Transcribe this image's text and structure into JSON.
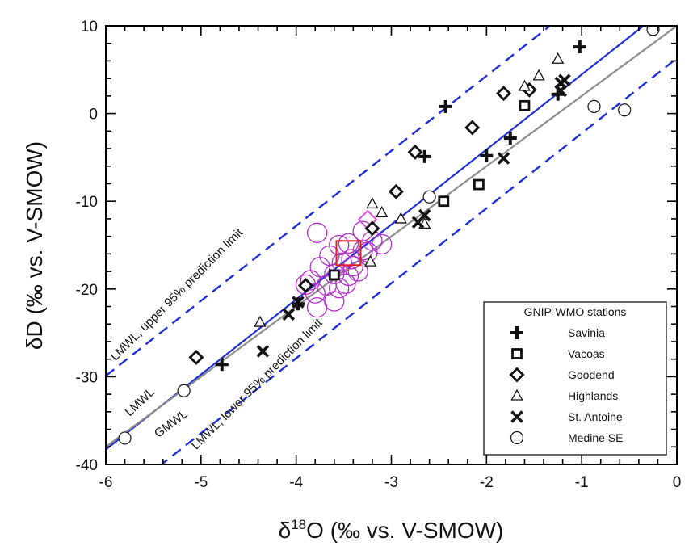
{
  "chart_data": {
    "type": "scatter",
    "xlabel_prefix": "δ",
    "xlabel_sup": "18",
    "xlabel_rest": "O (‰ vs. V-SMOW)",
    "ylabel": "δD (‰ vs. V-SMOW)",
    "xlim": [
      -6,
      0
    ],
    "ylim": [
      -40,
      10
    ],
    "xticks": [
      -6,
      -5,
      -4,
      -3,
      -2,
      -1,
      0
    ],
    "yticks": [
      -40,
      -30,
      -20,
      -10,
      0,
      10
    ],
    "legend": {
      "title": "GNIP-WMO stations",
      "placement": "bottom-right"
    },
    "lines": [
      {
        "name": "LMWL",
        "color": "#1f2fd6",
        "style": "solid",
        "slope": 8.55,
        "intercept": 13.0
      },
      {
        "name": "LMWL, upper 95% prediction limit",
        "color": "#1f2fd6",
        "style": "dashed",
        "slope": 8.55,
        "intercept": 21.4
      },
      {
        "name": "LMWL, lower 95% prediction limit",
        "color": "#1f2fd6",
        "style": "dashed",
        "slope": 8.55,
        "intercept": 6.3
      },
      {
        "name": "GMWL",
        "color": "#8c8c8c",
        "style": "solid",
        "slope": 8,
        "intercept": 10
      }
    ],
    "line_labels": [
      {
        "text": "LMWL, upper 95% prediction limit"
      },
      {
        "text": "LMWL"
      },
      {
        "text": "GMWL"
      },
      {
        "text": "LMWL, lower 95% prediction limit"
      }
    ],
    "series": [
      {
        "name": "Savinia",
        "marker": "plus",
        "points": [
          [
            -1.02,
            7.6
          ],
          [
            -2.43,
            0.8
          ],
          [
            -1.25,
            2.2
          ],
          [
            -1.75,
            -2.8
          ],
          [
            -2.65,
            -4.9
          ],
          [
            -2.0,
            -4.8
          ],
          [
            -4.78,
            -28.6
          ],
          [
            -3.98,
            -21.7
          ]
        ]
      },
      {
        "name": "Vacoas",
        "marker": "square",
        "points": [
          [
            -1.6,
            0.9
          ],
          [
            -2.08,
            -8.1
          ],
          [
            -2.45,
            -10.0
          ],
          [
            -3.6,
            -18.4
          ]
        ]
      },
      {
        "name": "Goodend",
        "marker": "diamond",
        "points": [
          [
            -1.82,
            2.3
          ],
          [
            -1.55,
            2.7
          ],
          [
            -2.15,
            -1.6
          ],
          [
            -2.75,
            -4.4
          ],
          [
            -2.95,
            -8.9
          ],
          [
            -3.2,
            -13.1
          ],
          [
            -3.9,
            -19.6
          ],
          [
            -5.05,
            -27.8
          ]
        ]
      },
      {
        "name": "Highlands",
        "marker": "triangle",
        "points": [
          [
            -1.25,
            6.2
          ],
          [
            -1.45,
            4.3
          ],
          [
            -1.6,
            3.1
          ],
          [
            -3.2,
            -10.3
          ],
          [
            -3.1,
            -11.3
          ],
          [
            -2.9,
            -12.0
          ],
          [
            -2.65,
            -12.6
          ],
          [
            -3.22,
            -16.9
          ],
          [
            -4.38,
            -23.8
          ]
        ]
      },
      {
        "name": "St. Antoine",
        "marker": "cross",
        "points": [
          [
            -1.22,
            3.5
          ],
          [
            -1.18,
            3.8
          ],
          [
            -1.22,
            2.6
          ],
          [
            -1.82,
            -5.1
          ],
          [
            -2.65,
            -11.6
          ],
          [
            -2.72,
            -12.4
          ],
          [
            -4.08,
            -22.9
          ],
          [
            -4.35,
            -27.1
          ],
          [
            -3.98,
            -21.5
          ]
        ]
      },
      {
        "name": "Medine SE",
        "marker": "circle",
        "points": [
          [
            -0.25,
            9.6
          ],
          [
            -0.87,
            0.8
          ],
          [
            -0.55,
            0.4
          ],
          [
            -2.6,
            -9.5
          ],
          [
            -5.8,
            -37.0
          ],
          [
            -5.18,
            -31.6
          ]
        ]
      }
    ],
    "highlight_circles": [
      [
        -3.78,
        -13.6
      ],
      [
        -3.55,
        -15.0
      ],
      [
        -3.45,
        -14.8
      ],
      [
        -3.3,
        -13.4
      ],
      [
        -3.2,
        -14.5
      ],
      [
        -3.1,
        -14.9
      ],
      [
        -3.65,
        -16.2
      ],
      [
        -3.42,
        -16.6
      ],
      [
        -3.3,
        -15.6
      ],
      [
        -3.75,
        -17.5
      ],
      [
        -3.6,
        -18.3
      ],
      [
        -3.52,
        -17.0
      ],
      [
        -3.45,
        -18.5
      ],
      [
        -3.9,
        -19.5
      ],
      [
        -3.68,
        -19.6
      ],
      [
        -3.55,
        -19.9
      ],
      [
        -3.48,
        -19.4
      ],
      [
        -3.8,
        -20.5
      ],
      [
        -3.6,
        -21.4
      ],
      [
        -3.78,
        -22.1
      ],
      [
        -3.85,
        -19.0
      ],
      [
        -3.35,
        -18.0
      ],
      [
        -3.25,
        -15.8
      ],
      [
        -3.4,
        -17.4
      ]
    ],
    "highlight_square": [
      -3.45,
      -15.9
    ],
    "highlight_diamond": [
      -3.25,
      -12.1
    ],
    "colors": {
      "lmwl": "#1f2fd6",
      "gmwl": "#8c8c8c",
      "highlight_circle": "#b030c8",
      "highlight_square": "#e02020",
      "highlight_diamond": "#e050e0",
      "marker": "#111111"
    }
  }
}
